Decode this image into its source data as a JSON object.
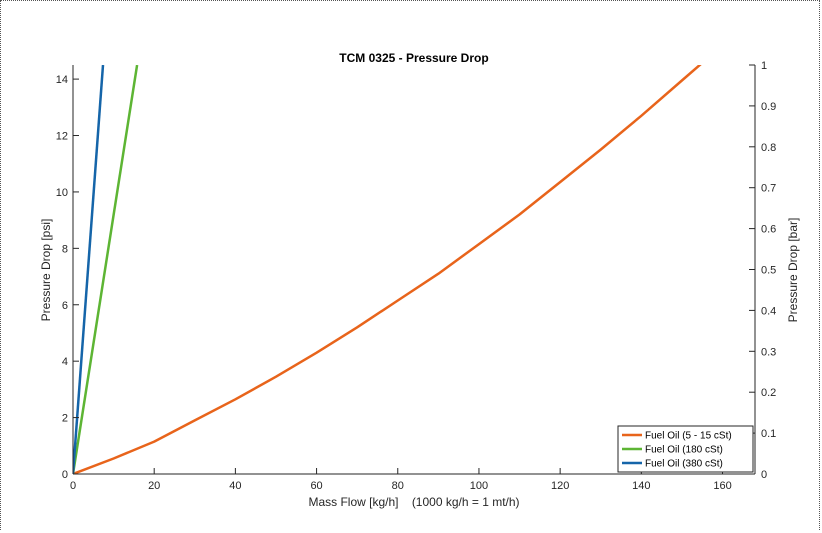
{
  "chart_data": {
    "type": "line",
    "title": "TCM 0325 - Pressure Drop",
    "xlabel": "Mass Flow [kg/h]    (1000 kg/h = 1 mt/h)",
    "ylabel": "Pressure Drop [psi]",
    "y2label": "Pressure Drop [bar]",
    "xlim": [
      0,
      168
    ],
    "ylim": [
      0,
      14.5
    ],
    "y2lim": [
      0,
      1
    ],
    "xticks": [
      0,
      20,
      40,
      60,
      80,
      100,
      120,
      140,
      160
    ],
    "yticks": [
      0,
      2,
      4,
      6,
      8,
      10,
      12,
      14
    ],
    "y2ticks": [
      0,
      0.1,
      0.2,
      0.3,
      0.4,
      0.5,
      0.6,
      0.7,
      0.8,
      0.9,
      1
    ],
    "grid": false,
    "legend_position": "bottom-right",
    "series": [
      {
        "name": "Fuel Oil (5 - 15 cSt)",
        "color": "#E8641B",
        "x": [
          0,
          10,
          20,
          30,
          40,
          50,
          60,
          70,
          80,
          90,
          100,
          110,
          120,
          130,
          140,
          150,
          160,
          166
        ],
        "y": [
          0,
          0.55,
          1.15,
          1.9,
          2.65,
          3.45,
          4.3,
          5.2,
          6.15,
          7.1,
          8.15,
          9.2,
          10.35,
          11.5,
          12.7,
          13.95,
          15.2,
          16.0
        ]
      },
      {
        "name": "Fuel Oil (180 cSt)",
        "color": "#5DB534",
        "x": [
          0,
          15.8
        ],
        "y": [
          0,
          14.5
        ]
      },
      {
        "name": "Fuel Oil (380 cSt)",
        "color": "#1565A9",
        "x": [
          0,
          7.4
        ],
        "y": [
          0,
          14.5
        ]
      }
    ]
  }
}
